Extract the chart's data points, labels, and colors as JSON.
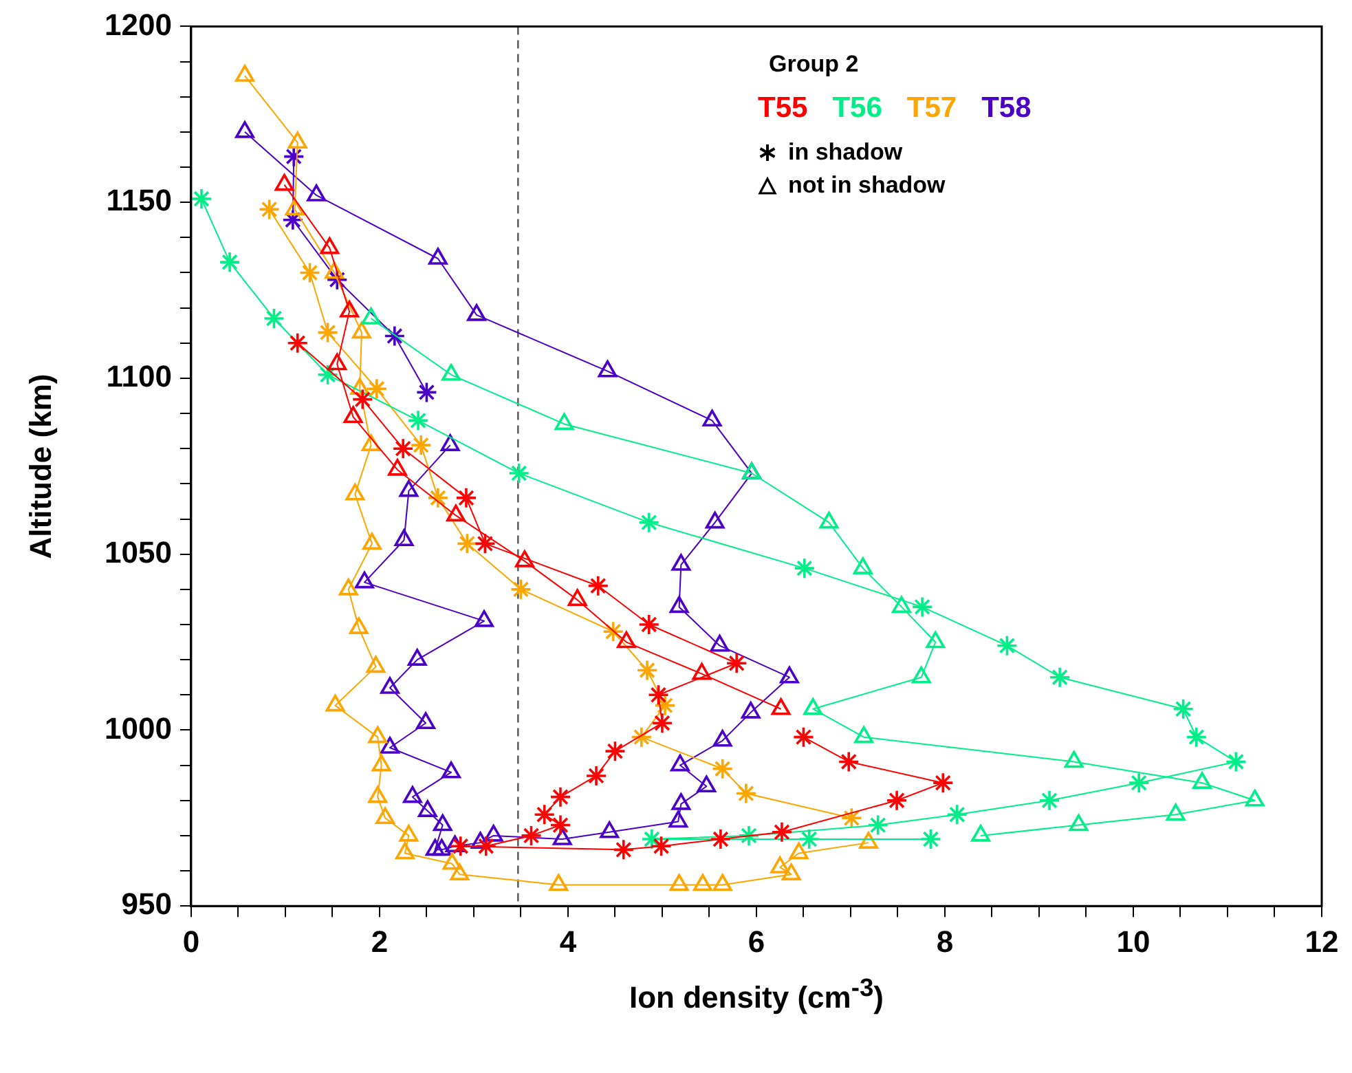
{
  "chart_data": {
    "type": "line",
    "xlabel": "Ion density (cm$^{-3}$)",
    "ylabel": "Altitude (km)",
    "legend_title": "Group 2",
    "legend": "top right",
    "grid": false,
    "annotations": [
      "in shadow",
      "not in shadow"
    ],
    "xlim": [
      0,
      12
    ],
    "ylim": [
      950,
      1200
    ],
    "xticks": [
      0,
      {
        "value": 0.5,
        "label": null
      },
      {
        "value": 1,
        "label": null
      },
      {
        "value": 1.5,
        "label": null
      },
      2,
      {
        "value": 2.5,
        "label": null
      },
      {
        "value": 3,
        "label": null
      },
      {
        "value": 3.5,
        "label": null
      },
      4,
      {
        "value": 4.5,
        "label": null
      },
      {
        "value": 5,
        "label": null
      },
      {
        "value": 5.5,
        "label": null
      },
      6,
      {
        "value": 6.5,
        "label": null
      },
      {
        "value": 7,
        "label": null
      },
      {
        "value": 7.5,
        "label": null
      },
      8,
      {
        "value": 8.5,
        "label": null
      },
      {
        "value": 9,
        "label": null
      },
      {
        "value": 9.5,
        "label": null
      },
      10,
      {
        "value": 10.5,
        "label": null
      },
      {
        "value": 11,
        "label": null
      },
      {
        "value": 11.5,
        "label": null
      },
      12
    ],
    "yticks": [
      950,
      {
        "value": 960,
        "label": null
      },
      {
        "value": 970,
        "label": null
      },
      {
        "value": 980,
        "label": null
      },
      {
        "value": 990,
        "label": null
      },
      1000,
      {
        "value": 1010,
        "label": null
      },
      {
        "value": 1020,
        "label": null
      },
      {
        "value": 1030,
        "label": null
      },
      {
        "value": 1040,
        "label": null
      },
      1050,
      {
        "value": 1060,
        "label": null
      },
      {
        "value": 1070,
        "label": null
      },
      {
        "value": 1080,
        "label": null
      },
      {
        "value": 1090,
        "label": null
      },
      1100,
      {
        "value": 1110,
        "label": null
      },
      {
        "value": 1120,
        "label": null
      },
      {
        "value": 1130,
        "label": null
      },
      {
        "value": 1140,
        "label": null
      },
      1150,
      {
        "value": 1160,
        "label": null
      },
      {
        "value": 1170,
        "label": null
      },
      {
        "value": 1180,
        "label": null
      },
      {
        "value": 1190,
        "label": null
      },
      1200
    ],
    "ref_lines": [
      {
        "axis": "x",
        "value": 3.47,
        "line_style": "dashed",
        "color": "#555555"
      }
    ],
    "series": [
      {
        "name": "T55",
        "color": "#ff0000",
        "marker": "cross",
        "x": [
          1.13,
          1.82,
          2.25,
          2.92,
          3.12,
          4.32,
          4.86,
          5.79,
          4.96,
          5.0,
          4.5,
          4.3,
          3.92,
          3.75,
          3.92,
          3.61,
          3.13,
          2.86,
          4.59,
          4.99,
          5.62,
          6.27,
          7.49,
          7.98,
          6.98,
          6.5
        ],
        "values": [
          1110,
          1094,
          1080,
          1066,
          1053,
          1041,
          1030,
          1019,
          1010,
          1002,
          994,
          987,
          981,
          976,
          973,
          970,
          967,
          967,
          966,
          967,
          969,
          971,
          980,
          985,
          991,
          998
        ]
      },
      {
        "color": "#ff0000",
        "marker": "triangle",
        "x": [
          0.99,
          1.47,
          1.68,
          1.55,
          1.72,
          2.19,
          2.81,
          3.54,
          4.1,
          4.62,
          5.42,
          6.26
        ],
        "values": [
          1155,
          1137,
          1119,
          1104,
          1089,
          1074,
          1061,
          1048,
          1037,
          1025,
          1016,
          1006
        ]
      },
      {
        "name": "T56",
        "color": "#00ee88",
        "marker": "cross",
        "x": [
          0.11,
          0.41,
          0.88,
          1.45,
          2.41,
          3.48,
          4.86,
          6.51,
          7.76,
          8.66,
          9.22,
          10.53,
          10.67,
          11.09,
          10.06,
          9.11,
          8.13,
          7.29,
          5.92,
          4.89,
          6.56,
          7.85
        ],
        "values": [
          1151,
          1133,
          1117,
          1101,
          1088,
          1073,
          1059,
          1046,
          1035,
          1024,
          1015,
          1006,
          998,
          991,
          985,
          980,
          976,
          973,
          970,
          969,
          969,
          969
        ]
      },
      {
        "color": "#00ee88",
        "marker": "triangle",
        "x": [
          1.91,
          2.76,
          3.96,
          5.95,
          6.77,
          7.13,
          7.54,
          7.9,
          7.75,
          6.6,
          7.14,
          9.37,
          10.73,
          11.29,
          10.45,
          9.42,
          8.38
        ],
        "values": [
          1117,
          1101,
          1087,
          1073,
          1059,
          1046,
          1035,
          1025,
          1015,
          1006,
          998,
          991,
          985,
          980,
          976,
          973,
          970
        ]
      },
      {
        "name": "T57",
        "color": "#ffa500",
        "marker": "cross",
        "x": [
          0.83,
          1.26,
          1.45,
          1.97,
          2.44,
          2.62,
          2.93,
          3.5,
          4.48,
          4.84,
          5.03,
          4.78,
          5.64,
          5.89,
          7.01
        ],
        "values": [
          1148,
          1130,
          1113,
          1097,
          1081,
          1066,
          1053,
          1040,
          1028,
          1017,
          1007,
          998,
          989,
          982,
          975
        ]
      },
      {
        "color": "#ffa500",
        "marker": "triangle",
        "x": [
          0.57,
          1.13,
          1.1,
          1.52,
          1.81,
          1.79,
          1.91,
          1.74,
          1.92,
          1.67,
          1.78,
          1.96,
          1.53,
          1.98,
          2.02,
          1.98,
          2.06,
          2.31,
          2.27,
          2.77,
          2.85,
          3.9,
          5.18,
          5.43,
          5.64,
          6.37,
          6.25,
          6.45,
          7.19
        ],
        "values": [
          1186,
          1167,
          1148,
          1130,
          1113,
          1097,
          1081,
          1067,
          1053,
          1040,
          1029,
          1018,
          1007,
          998,
          990,
          981,
          975,
          970,
          965,
          962,
          959,
          956,
          956,
          956,
          956,
          959,
          961,
          965,
          968
        ]
      },
      {
        "name": "T58",
        "color": "#4b00c8",
        "marker": "cross",
        "x": [
          1.09,
          1.08,
          1.55,
          2.16,
          2.5
        ],
        "values": [
          1163,
          1145,
          1128,
          1112,
          1096
        ]
      },
      {
        "color": "#4b00c8",
        "marker": "triangle",
        "x": [
          0.57,
          1.33,
          2.62,
          3.03,
          4.42,
          5.53,
          5.95,
          5.56,
          5.2,
          5.18,
          5.61,
          6.35,
          5.94,
          5.64,
          5.19,
          5.47,
          5.2,
          5.17,
          4.44,
          3.94,
          3.21,
          3.07,
          2.8,
          2.66,
          2.59,
          2.67,
          2.51,
          2.35,
          2.76,
          2.11,
          2.49,
          2.11,
          2.4,
          3.11,
          1.84,
          2.26,
          2.31,
          2.75
        ],
        "values": [
          1170,
          1152,
          1134,
          1118,
          1102,
          1088,
          1073,
          1059,
          1047,
          1035,
          1024,
          1015,
          1005,
          997,
          990,
          984,
          979,
          974,
          971,
          969,
          970,
          968,
          967,
          966,
          966,
          973,
          977,
          981,
          988,
          995,
          1002,
          1012,
          1020,
          1031,
          1042,
          1054,
          1068,
          1081
        ]
      }
    ]
  }
}
